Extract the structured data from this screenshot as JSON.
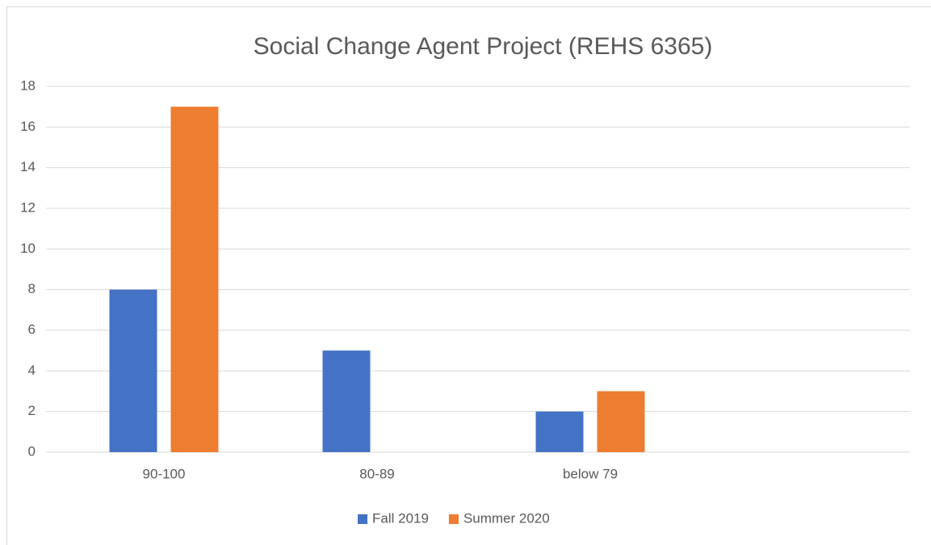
{
  "chart_data": {
    "type": "bar",
    "title": "Social Change Agent Project (REHS 6365)",
    "categories": [
      "90-100",
      "80-89",
      "below 79",
      null
    ],
    "series": [
      {
        "name": "Fall 2019",
        "color": "#4472c4",
        "values": [
          8,
          5,
          2,
          null
        ]
      },
      {
        "name": "Summer 2020",
        "color": "#ed7d31",
        "values": [
          17,
          0,
          3,
          null
        ]
      }
    ],
    "ylim": [
      0,
      18
    ],
    "yticks": [
      0,
      2,
      4,
      6,
      8,
      10,
      12,
      14,
      16,
      18
    ],
    "grid": true,
    "legend": "bottom"
  }
}
